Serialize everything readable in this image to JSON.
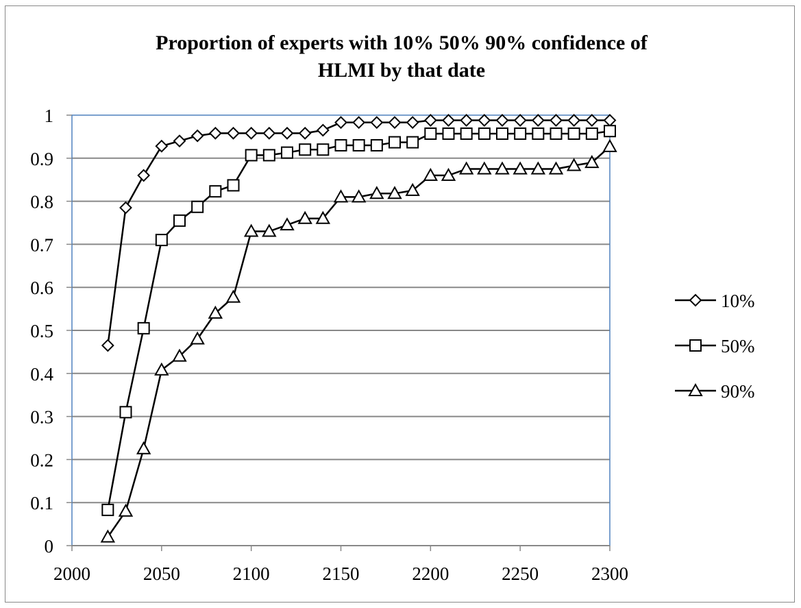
{
  "chart_data": {
    "type": "line",
    "title_lines": [
      "Proportion of experts with 10% 50% 90% confidence of",
      "HLMI by that date"
    ],
    "xlabel": "",
    "ylabel": "",
    "xlim": [
      2000,
      2300
    ],
    "ylim": [
      0,
      1
    ],
    "x_ticks": [
      2000,
      2050,
      2100,
      2150,
      2200,
      2250,
      2300
    ],
    "x_tick_labels": [
      "2000",
      "2050",
      "2100",
      "2150",
      "2200",
      "2250",
      "2300"
    ],
    "y_ticks": [
      0,
      0.1,
      0.2,
      0.3,
      0.4,
      0.5,
      0.6,
      0.7,
      0.8,
      0.9,
      1
    ],
    "y_tick_labels": [
      "0",
      "0.1",
      "0.2",
      "0.3",
      "0.4",
      "0.5",
      "0.6",
      "0.7",
      "0.8",
      "0.9",
      "1"
    ],
    "grid": "horizontal",
    "legend_position": "right",
    "x": [
      2020,
      2030,
      2040,
      2050,
      2060,
      2070,
      2080,
      2090,
      2100,
      2110,
      2120,
      2130,
      2140,
      2150,
      2160,
      2170,
      2180,
      2190,
      2200,
      2210,
      2220,
      2230,
      2240,
      2250,
      2260,
      2270,
      2280,
      2290,
      2300
    ],
    "series": [
      {
        "name": "10%",
        "marker": "diamond",
        "values": [
          0.465,
          0.785,
          0.86,
          0.928,
          0.94,
          0.952,
          0.958,
          0.958,
          0.958,
          0.958,
          0.958,
          0.958,
          0.965,
          0.983,
          0.983,
          0.983,
          0.983,
          0.983,
          0.988,
          0.988,
          0.988,
          0.988,
          0.988,
          0.988,
          0.988,
          0.988,
          0.988,
          0.988,
          0.988
        ]
      },
      {
        "name": "50%",
        "marker": "square",
        "values": [
          0.083,
          0.31,
          0.505,
          0.71,
          0.755,
          0.787,
          0.823,
          0.837,
          0.907,
          0.907,
          0.913,
          0.92,
          0.92,
          0.93,
          0.93,
          0.93,
          0.937,
          0.937,
          0.957,
          0.957,
          0.957,
          0.957,
          0.957,
          0.957,
          0.957,
          0.957,
          0.957,
          0.957,
          0.963
        ]
      },
      {
        "name": "90%",
        "marker": "triangle",
        "values": [
          0.02,
          0.08,
          0.225,
          0.408,
          0.44,
          0.48,
          0.54,
          0.577,
          0.73,
          0.73,
          0.745,
          0.76,
          0.76,
          0.81,
          0.81,
          0.818,
          0.818,
          0.825,
          0.86,
          0.86,
          0.875,
          0.875,
          0.875,
          0.875,
          0.875,
          0.875,
          0.883,
          0.89,
          0.927
        ]
      }
    ]
  }
}
